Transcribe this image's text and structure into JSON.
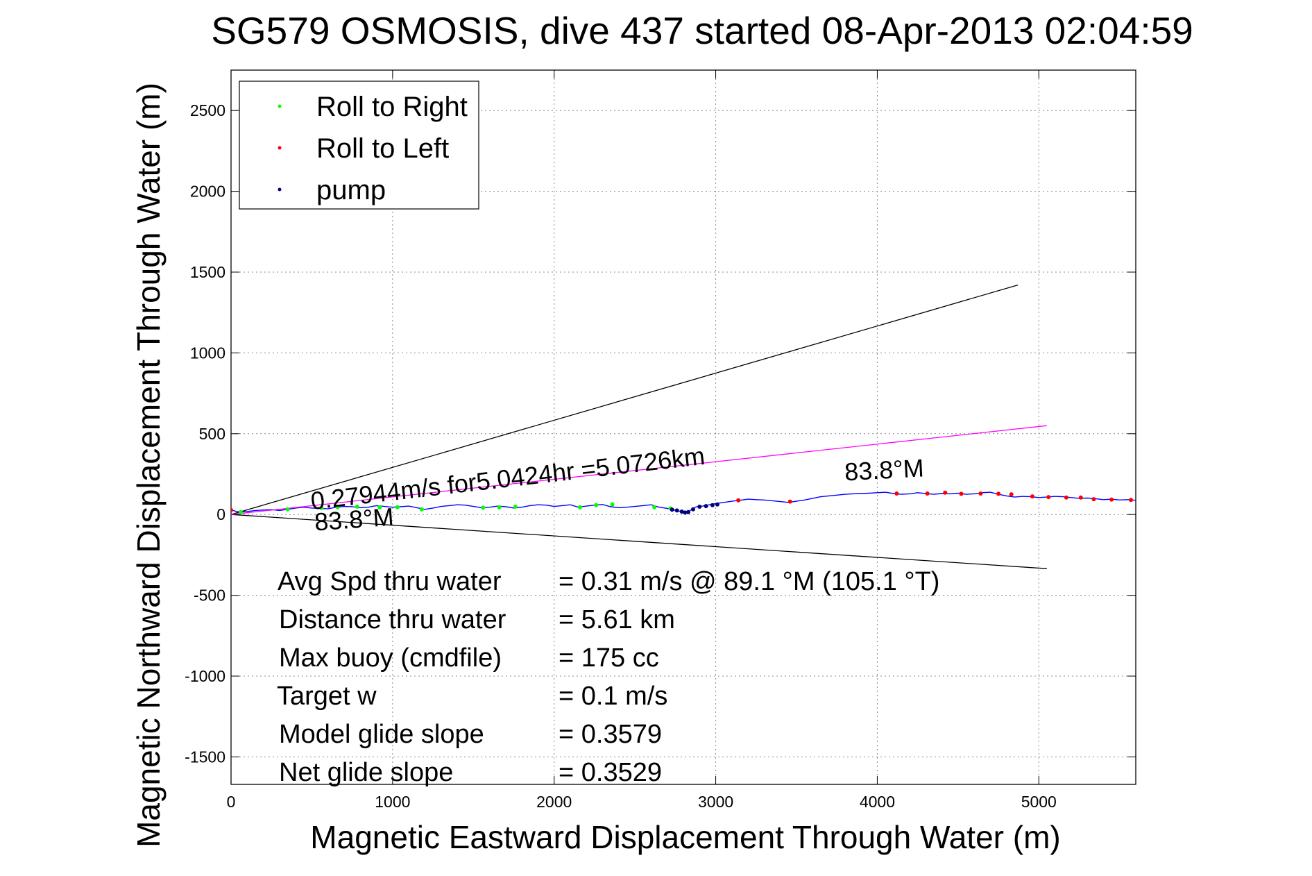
{
  "chart_data": {
    "type": "line",
    "title": "SG579 OSMOSIS, dive 437 started 08-Apr-2013 02:04:59",
    "xlabel": "Magnetic Eastward Displacement Through Water (m)",
    "ylabel": "Magnetic Northward Displacement Through Water (m)",
    "xlim": [
      0,
      5600
    ],
    "ylim": [
      -1670,
      2750
    ],
    "grid": true,
    "legend_position": "top-left",
    "x_ticks": [
      0,
      1000,
      2000,
      3000,
      4000,
      5000
    ],
    "y_ticks": [
      -1500,
      -1000,
      -500,
      0,
      500,
      1000,
      1500,
      2000,
      2500
    ],
    "legend": [
      {
        "label": "Roll to Right",
        "color": "#00ff00"
      },
      {
        "label": "Roll to Left",
        "color": "#ff0000"
      },
      {
        "label": "pump",
        "color": "#000080"
      }
    ],
    "series": [
      {
        "role": "track",
        "color": "#0000ff",
        "x": [
          0,
          30,
          60,
          100,
          150,
          200,
          250,
          300,
          350,
          400,
          450,
          500,
          550,
          600,
          650,
          700,
          750,
          800,
          850,
          900,
          950,
          1000,
          1050,
          1100,
          1150,
          1200,
          1250,
          1300,
          1350,
          1400,
          1450,
          1500,
          1550,
          1600,
          1650,
          1700,
          1750,
          1800,
          1850,
          1900,
          1950,
          2000,
          2050,
          2100,
          2150,
          2200,
          2250,
          2300,
          2350,
          2400,
          2450,
          2500,
          2550,
          2600,
          2650,
          2700,
          2740,
          2780,
          2800,
          2820,
          2850,
          2880,
          2920,
          2960,
          3000,
          3050,
          3100,
          3150,
          3200,
          3250,
          3300,
          3350,
          3400,
          3450,
          3500,
          3550,
          3600,
          3650,
          3700,
          3750,
          3800,
          3850,
          3900,
          3950,
          4000,
          4050,
          4100,
          4150,
          4200,
          4250,
          4300,
          4350,
          4400,
          4450,
          4500,
          4550,
          4600,
          4650,
          4700,
          4750,
          4800,
          4850,
          4900,
          4950,
          5000,
          5050,
          5100,
          5150,
          5200,
          5250,
          5300,
          5350,
          5400,
          5450,
          5500,
          5550,
          5600
        ],
        "y": [
          28,
          20,
          15,
          18,
          25,
          28,
          30,
          25,
          32,
          40,
          45,
          40,
          38,
          35,
          45,
          50,
          48,
          42,
          45,
          55,
          50,
          45,
          48,
          52,
          42,
          32,
          40,
          50,
          55,
          60,
          58,
          50,
          42,
          45,
          52,
          48,
          40,
          45,
          55,
          60,
          58,
          50,
          55,
          60,
          45,
          52,
          58,
          62,
          48,
          42,
          45,
          50,
          55,
          60,
          45,
          38,
          28,
          20,
          15,
          10,
          30,
          48,
          52,
          60,
          68,
          75,
          82,
          88,
          95,
          92,
          90,
          85,
          80,
          75,
          82,
          90,
          100,
          110,
          115,
          120,
          125,
          128,
          130,
          132,
          135,
          138,
          130,
          125,
          128,
          135,
          130,
          125,
          130,
          128,
          132,
          125,
          128,
          135,
          138,
          125,
          115,
          108,
          112,
          110,
          105,
          108,
          112,
          110,
          105,
          100,
          102,
          98,
          92,
          95,
          90,
          92,
          88
        ]
      },
      {
        "role": "heading-line-upper",
        "color": "#000000",
        "x": [
          0,
          4870
        ],
        "y": [
          0,
          1420
        ]
      },
      {
        "role": "heading-line-lower",
        "color": "#000000",
        "x": [
          0,
          5050
        ],
        "y": [
          0,
          -335
        ]
      },
      {
        "role": "average-velocity",
        "color": "#ff00ff",
        "x": [
          0,
          5050
        ],
        "y": [
          0,
          550
        ]
      },
      {
        "name": "Roll to Right",
        "color": "#00ff00",
        "x": [
          60,
          350,
          560,
          660,
          780,
          920,
          1030,
          1180,
          1560,
          1660,
          1760,
          2160,
          2260,
          2360,
          2620,
          2720
        ],
        "y": [
          15,
          32,
          40,
          45,
          48,
          45,
          45,
          32,
          42,
          45,
          48,
          45,
          58,
          62,
          45,
          38
        ]
      },
      {
        "name": "Roll to Left",
        "color": "#ff0000",
        "x": [
          0,
          3140,
          3460,
          4120,
          4310,
          4420,
          4520,
          4640,
          4750,
          4830,
          4960,
          5060,
          5170,
          5260,
          5340,
          5450,
          5570
        ],
        "y": [
          28,
          88,
          80,
          130,
          130,
          135,
          128,
          130,
          128,
          125,
          112,
          108,
          105,
          105,
          95,
          92,
          90
        ]
      },
      {
        "name": "pump",
        "color": "#000080",
        "x": [
          2730,
          2760,
          2790,
          2810,
          2830,
          2860,
          2900,
          2940,
          2980,
          3010
        ],
        "y": [
          30,
          25,
          18,
          12,
          15,
          32,
          48,
          52,
          58,
          62
        ]
      }
    ],
    "annotations": [
      {
        "text": "0.27944m/s for5.0424hr =5.0726km",
        "x": 500,
        "y": 30,
        "angle_deg": -6.6
      },
      {
        "text": "83.8°M",
        "x": 3800,
        "y": 210,
        "angle_deg": -3
      },
      {
        "text": "83.8°M",
        "x": 520,
        "y": -100,
        "angle_deg": -4
      }
    ]
  },
  "stats": [
    {
      "label": "Avg Spd thru water",
      "value": "=  0.31 m/s @  89.1 °M (105.1 °T)"
    },
    {
      "label": "Distance thru water",
      "value": "=  5.61 km"
    },
    {
      "label": "Max buoy (cmdfile)",
      "value": "= 175 cc"
    },
    {
      "label": "Target w",
      "value": "= 0.1 m/s"
    },
    {
      "label": "Model glide slope",
      "value": "= 0.3579"
    },
    {
      "label": "Net glide slope",
      "value": "= 0.3529"
    }
  ]
}
